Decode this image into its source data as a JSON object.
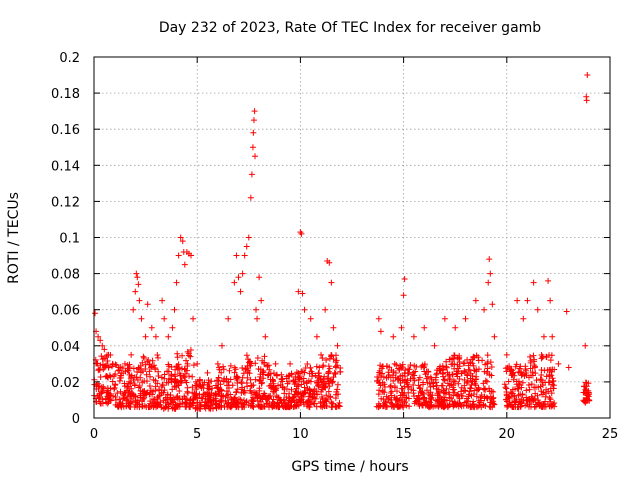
{
  "chart_data": {
    "type": "scatter",
    "title": "Day 232 of 2023, Rate Of TEC Index for receiver gamb",
    "xlabel": "GPS time / hours",
    "ylabel": "ROTI / TECUs",
    "xlim": [
      0,
      25
    ],
    "ylim": [
      0,
      0.2
    ],
    "x_ticks": [
      "0",
      "5",
      "10",
      "15",
      "20",
      "25"
    ],
    "y_ticks": [
      "0",
      "0.02",
      "0.04",
      "0.06",
      "0.08",
      "0.1",
      "0.12",
      "0.14",
      "0.16",
      "0.18",
      "0.2"
    ],
    "x_tick_values": [
      0,
      5,
      10,
      15,
      20,
      25
    ],
    "y_tick_values": [
      0,
      0.02,
      0.04,
      0.06,
      0.08,
      0.1,
      0.12,
      0.14,
      0.16,
      0.18,
      0.2
    ],
    "grid": true,
    "marker": "plus",
    "color": "#ff0000",
    "series": [
      {
        "name": "ROTI",
        "points": [
          [
            0.05,
            0.058
          ],
          [
            0.1,
            0.048
          ],
          [
            0.2,
            0.045
          ],
          [
            0.3,
            0.043
          ],
          [
            0.4,
            0.04
          ],
          [
            0.5,
            0.038
          ],
          [
            0.7,
            0.035
          ],
          [
            0.9,
            0.03
          ],
          [
            1.2,
            0.028
          ],
          [
            1.5,
            0.03
          ],
          [
            1.8,
            0.035
          ],
          [
            1.9,
            0.06
          ],
          [
            2.0,
            0.07
          ],
          [
            2.05,
            0.08
          ],
          [
            2.1,
            0.078
          ],
          [
            2.15,
            0.074
          ],
          [
            2.2,
            0.065
          ],
          [
            2.3,
            0.055
          ],
          [
            2.5,
            0.045
          ],
          [
            2.6,
            0.063
          ],
          [
            2.8,
            0.05
          ],
          [
            3.0,
            0.045
          ],
          [
            3.3,
            0.065
          ],
          [
            3.4,
            0.055
          ],
          [
            3.6,
            0.045
          ],
          [
            3.8,
            0.05
          ],
          [
            3.9,
            0.06
          ],
          [
            4.0,
            0.075
          ],
          [
            4.1,
            0.09
          ],
          [
            4.2,
            0.1
          ],
          [
            4.3,
            0.098
          ],
          [
            4.35,
            0.092
          ],
          [
            4.4,
            0.085
          ],
          [
            4.5,
            0.092
          ],
          [
            4.6,
            0.091
          ],
          [
            4.7,
            0.09
          ],
          [
            4.8,
            0.055
          ],
          [
            5.0,
            0.03
          ],
          [
            5.5,
            0.025
          ],
          [
            6.0,
            0.03
          ],
          [
            6.2,
            0.04
          ],
          [
            6.5,
            0.055
          ],
          [
            6.8,
            0.075
          ],
          [
            6.9,
            0.09
          ],
          [
            7.0,
            0.078
          ],
          [
            7.1,
            0.07
          ],
          [
            7.2,
            0.08
          ],
          [
            7.3,
            0.09
          ],
          [
            7.4,
            0.095
          ],
          [
            7.5,
            0.1
          ],
          [
            7.6,
            0.122
          ],
          [
            7.65,
            0.135
          ],
          [
            7.7,
            0.15
          ],
          [
            7.72,
            0.158
          ],
          [
            7.75,
            0.165
          ],
          [
            7.78,
            0.17
          ],
          [
            7.8,
            0.145
          ],
          [
            7.85,
            0.06
          ],
          [
            7.9,
            0.055
          ],
          [
            8.0,
            0.078
          ],
          [
            8.1,
            0.065
          ],
          [
            8.3,
            0.045
          ],
          [
            8.8,
            0.03
          ],
          [
            9.5,
            0.03
          ],
          [
            9.9,
            0.07
          ],
          [
            10.0,
            0.103
          ],
          [
            10.05,
            0.102
          ],
          [
            10.1,
            0.069
          ],
          [
            10.2,
            0.06
          ],
          [
            10.5,
            0.055
          ],
          [
            10.8,
            0.045
          ],
          [
            11.0,
            0.035
          ],
          [
            11.2,
            0.06
          ],
          [
            11.3,
            0.087
          ],
          [
            11.4,
            0.086
          ],
          [
            11.5,
            0.075
          ],
          [
            11.6,
            0.05
          ],
          [
            11.8,
            0.04
          ],
          [
            13.8,
            0.055
          ],
          [
            13.9,
            0.048
          ],
          [
            14.5,
            0.045
          ],
          [
            14.9,
            0.05
          ],
          [
            15.0,
            0.068
          ],
          [
            15.05,
            0.077
          ],
          [
            15.5,
            0.045
          ],
          [
            16.0,
            0.05
          ],
          [
            16.5,
            0.04
          ],
          [
            17.0,
            0.055
          ],
          [
            17.5,
            0.05
          ],
          [
            18.0,
            0.055
          ],
          [
            18.5,
            0.065
          ],
          [
            18.9,
            0.06
          ],
          [
            19.1,
            0.075
          ],
          [
            19.15,
            0.088
          ],
          [
            19.2,
            0.08
          ],
          [
            19.3,
            0.063
          ],
          [
            19.4,
            0.045
          ],
          [
            20.0,
            0.035
          ],
          [
            20.5,
            0.065
          ],
          [
            20.8,
            0.055
          ],
          [
            21.0,
            0.065
          ],
          [
            21.3,
            0.075
          ],
          [
            21.5,
            0.06
          ],
          [
            21.8,
            0.045
          ],
          [
            22.0,
            0.076
          ],
          [
            22.1,
            0.065
          ],
          [
            22.2,
            0.045
          ],
          [
            22.5,
            0.03
          ],
          [
            22.9,
            0.059
          ],
          [
            23.0,
            0.028
          ],
          [
            23.8,
            0.04
          ],
          [
            23.85,
            0.178
          ],
          [
            23.87,
            0.176
          ],
          [
            23.9,
            0.19
          ],
          [
            23.95,
            0.015
          ],
          [
            23.97,
            0.012
          ],
          [
            23.99,
            0.01
          ]
        ],
        "dense_bands": [
          {
            "x": [
              0.0,
              1.0
            ],
            "y": [
              0.008,
              0.035
            ]
          },
          {
            "x": [
              1.0,
              2.0
            ],
            "y": [
              0.006,
              0.03
            ]
          },
          {
            "x": [
              2.0,
              3.2
            ],
            "y": [
              0.006,
              0.035
            ]
          },
          {
            "x": [
              3.2,
              4.0
            ],
            "y": [
              0.005,
              0.03
            ]
          },
          {
            "x": [
              4.0,
              4.9
            ],
            "y": [
              0.006,
              0.04
            ]
          },
          {
            "x": [
              4.9,
              6.0
            ],
            "y": [
              0.005,
              0.022
            ]
          },
          {
            "x": [
              6.0,
              7.0
            ],
            "y": [
              0.006,
              0.03
            ]
          },
          {
            "x": [
              7.0,
              8.5
            ],
            "y": [
              0.006,
              0.035
            ]
          },
          {
            "x": [
              8.5,
              9.8
            ],
            "y": [
              0.006,
              0.025
            ]
          },
          {
            "x": [
              9.8,
              11.0
            ],
            "y": [
              0.006,
              0.03
            ]
          },
          {
            "x": [
              11.0,
              11.95
            ],
            "y": [
              0.006,
              0.035
            ]
          },
          {
            "x": [
              13.7,
              15.0
            ],
            "y": [
              0.006,
              0.03
            ]
          },
          {
            "x": [
              15.0,
              17.0
            ],
            "y": [
              0.006,
              0.03
            ]
          },
          {
            "x": [
              17.0,
              19.4
            ],
            "y": [
              0.006,
              0.035
            ]
          },
          {
            "x": [
              19.9,
              21.0
            ],
            "y": [
              0.006,
              0.03
            ]
          },
          {
            "x": [
              21.0,
              22.3
            ],
            "y": [
              0.006,
              0.035
            ]
          },
          {
            "x": [
              23.7,
              24.0
            ],
            "y": [
              0.008,
              0.02
            ]
          }
        ]
      }
    ]
  }
}
